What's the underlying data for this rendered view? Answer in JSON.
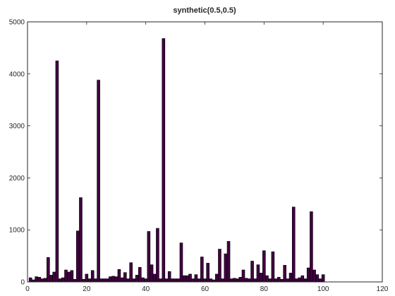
{
  "chart_data": {
    "type": "bar",
    "title": "synthetic(0.5,0.5)",
    "xlabel": "",
    "ylabel": "",
    "xlim": [
      0,
      120
    ],
    "ylim": [
      0,
      5000
    ],
    "x_ticks": [
      0,
      20,
      40,
      60,
      80,
      100,
      120
    ],
    "y_ticks": [
      0,
      1000,
      2000,
      3000,
      4000,
      5000
    ],
    "grid": false,
    "legend": "none",
    "bar_color": "#400040",
    "bar_edge_color": "#000000",
    "x": [
      1,
      2,
      3,
      4,
      5,
      6,
      7,
      8,
      9,
      10,
      11,
      12,
      13,
      14,
      15,
      16,
      17,
      18,
      19,
      20,
      21,
      22,
      23,
      24,
      25,
      26,
      27,
      28,
      29,
      30,
      31,
      32,
      33,
      34,
      35,
      36,
      37,
      38,
      39,
      40,
      41,
      42,
      43,
      44,
      45,
      46,
      47,
      48,
      49,
      50,
      51,
      52,
      53,
      54,
      55,
      56,
      57,
      58,
      59,
      60,
      61,
      62,
      63,
      64,
      65,
      66,
      67,
      68,
      69,
      70,
      71,
      72,
      73,
      74,
      75,
      76,
      77,
      78,
      79,
      80,
      81,
      82,
      83,
      84,
      85,
      86,
      87,
      88,
      89,
      90,
      91,
      92,
      93,
      94,
      95,
      96,
      97,
      98,
      99,
      100
    ],
    "values": [
      80,
      40,
      100,
      90,
      60,
      70,
      470,
      130,
      190,
      4250,
      60,
      80,
      230,
      190,
      220,
      50,
      980,
      1620,
      50,
      150,
      60,
      220,
      60,
      3880,
      60,
      60,
      60,
      100,
      110,
      100,
      240,
      80,
      180,
      60,
      370,
      60,
      130,
      280,
      80,
      60,
      970,
      330,
      150,
      1030,
      60,
      4680,
      60,
      200,
      60,
      60,
      60,
      750,
      120,
      120,
      150,
      60,
      140,
      60,
      480,
      60,
      360,
      60,
      40,
      150,
      630,
      60,
      540,
      780,
      60,
      70,
      60,
      90,
      230,
      70,
      60,
      400,
      60,
      330,
      170,
      600,
      120,
      60,
      580,
      60,
      90,
      50,
      320,
      60,
      170,
      1440,
      60,
      80,
      120,
      60,
      270,
      1350,
      230,
      140,
      60,
      140
    ]
  }
}
